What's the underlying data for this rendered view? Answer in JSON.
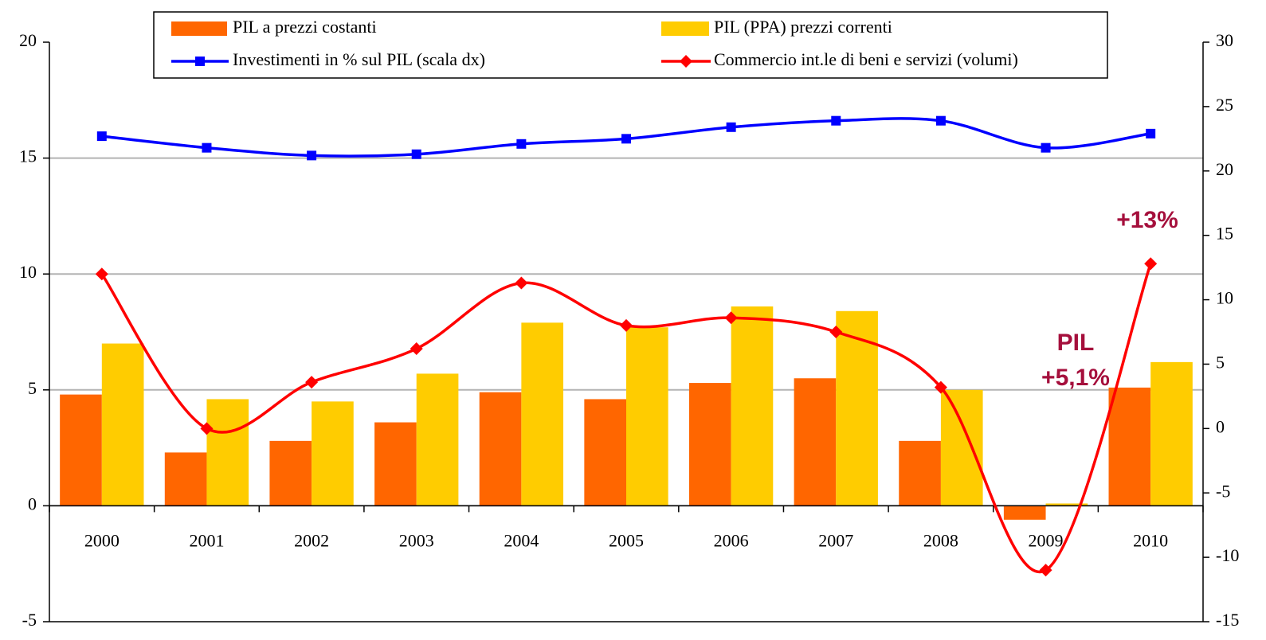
{
  "chart_data": {
    "type": "combo",
    "categories": [
      "2000",
      "2001",
      "2002",
      "2003",
      "2004",
      "2005",
      "2006",
      "2007",
      "2008",
      "2009",
      "2010"
    ],
    "series": [
      {
        "name": "PIL a prezzi costanti",
        "type": "bar",
        "color": "#ff6600",
        "values": [
          4.8,
          2.3,
          2.8,
          3.6,
          4.9,
          4.6,
          5.3,
          5.5,
          2.8,
          -0.6,
          5.1
        ]
      },
      {
        "name": "PIL (PPA) prezzi correnti",
        "type": "bar",
        "color": "#ffcc00",
        "values": [
          7.0,
          4.6,
          4.5,
          5.7,
          7.9,
          7.7,
          8.6,
          8.4,
          5.0,
          0.1,
          6.2
        ]
      },
      {
        "name": "Investimenti in % sul PIL (scala dx)",
        "type": "line",
        "marker": "square",
        "axis": "y2",
        "color": "#0000ff",
        "values": [
          22.7,
          21.8,
          21.2,
          21.3,
          22.1,
          22.5,
          23.4,
          23.9,
          23.9,
          21.8,
          22.9
        ]
      },
      {
        "name": "Commercio int.le di beni e servizi (volumi)",
        "type": "line",
        "marker": "diamond",
        "axis": "y2",
        "color": "#ff0000",
        "values": [
          12.0,
          0,
          3.6,
          6.2,
          11.3,
          8.0,
          8.6,
          7.5,
          3.2,
          -11.0,
          12.8
        ]
      }
    ],
    "ylim": [
      -5,
      20
    ],
    "yticks": [
      -5,
      0,
      5,
      10,
      15,
      20
    ],
    "y2lim": [
      -15,
      30
    ],
    "y2ticks": [
      -15,
      -10,
      -5,
      0,
      5,
      10,
      15,
      20,
      25,
      30
    ],
    "grid": true,
    "annotations": [
      "+13%",
      "PIL",
      "+5,1%"
    ],
    "annotation_color": "#a50f3c"
  }
}
